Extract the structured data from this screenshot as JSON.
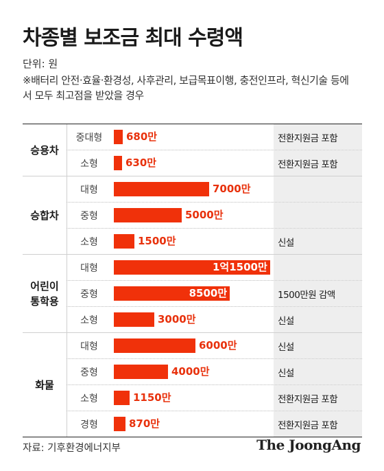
{
  "title": "차종별 보조금 최대 수령액",
  "unit": "단위: 원",
  "note": "※배터리 안전·효율·환경성, 사후관리, 보급목표이행, 충전인프라, 혁신기술 등에서 모두 최고점을 받았을 경우",
  "source": "자료: 기후환경에너지부",
  "logo": "The JoongAng",
  "colors": {
    "bar": "#f0310a",
    "value_text": "#e8310c",
    "note_bg": "#eeeeee"
  },
  "chart_data": {
    "type": "bar",
    "orientation": "horizontal",
    "max": 11500,
    "groups": [
      {
        "name": "승용차",
        "rows": [
          {
            "size": "중대형",
            "value": 680,
            "label": "680만",
            "note": "전환지원금 포함"
          },
          {
            "size": "소형",
            "value": 630,
            "label": "630만",
            "note": "전환지원금 포함"
          }
        ]
      },
      {
        "name": "승합차",
        "rows": [
          {
            "size": "대형",
            "value": 7000,
            "label": "7000만",
            "note": ""
          },
          {
            "size": "중형",
            "value": 5000,
            "label": "5000만",
            "note": ""
          },
          {
            "size": "소형",
            "value": 1500,
            "label": "1500만",
            "note": "신설"
          }
        ]
      },
      {
        "name": "어린이 통학용",
        "rows": [
          {
            "size": "대형",
            "value": 11500,
            "label": "1억1500만",
            "note": ""
          },
          {
            "size": "중형",
            "value": 8500,
            "label": "8500만",
            "note": "1500만원 감액"
          },
          {
            "size": "소형",
            "value": 3000,
            "label": "3000만",
            "note": "신설"
          }
        ]
      },
      {
        "name": "화물",
        "rows": [
          {
            "size": "대형",
            "value": 6000,
            "label": "6000만",
            "note": "신설"
          },
          {
            "size": "중형",
            "value": 4000,
            "label": "4000만",
            "note": "신설"
          },
          {
            "size": "소형",
            "value": 1150,
            "label": "1150만",
            "note": "전환지원금 포함"
          },
          {
            "size": "경형",
            "value": 870,
            "label": "870만",
            "note": "전환지원금 포함"
          }
        ]
      }
    ]
  }
}
